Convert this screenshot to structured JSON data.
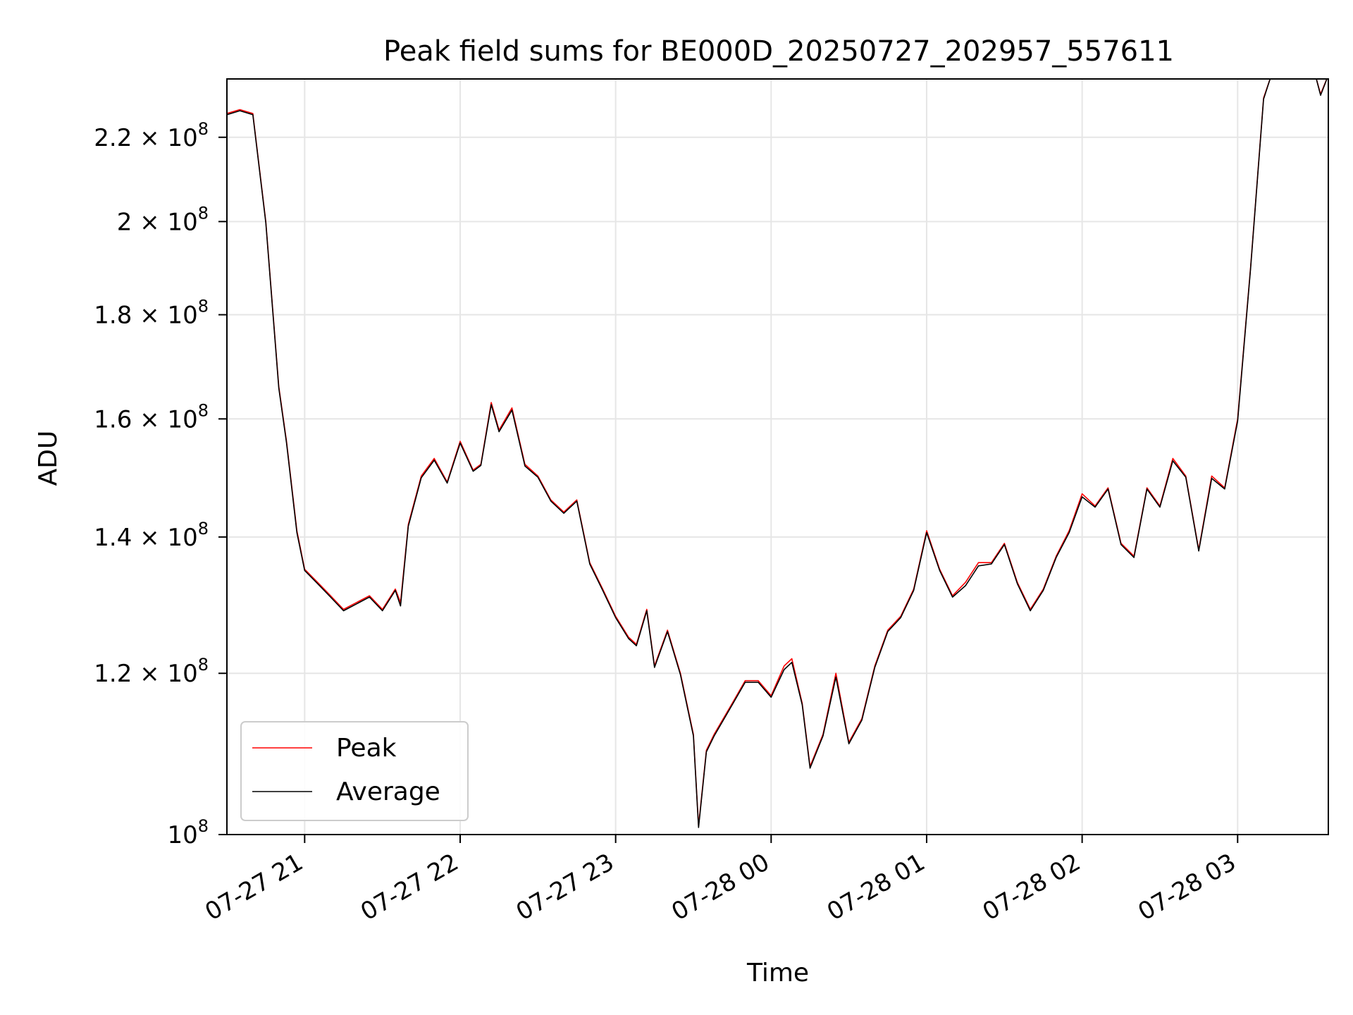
{
  "chart_data": {
    "type": "line",
    "title": "Peak field sums for BE000D_20250727_202957_557611",
    "xlabel": "Time",
    "ylabel": "ADU",
    "y_scale": "log",
    "grid": true,
    "legend_position": "lower-left",
    "xlim": [
      "2025-07-27 20:30",
      "2025-07-28 03:35"
    ],
    "ylim": [
      100000000,
      235000000
    ],
    "x_ticks": [
      {
        "value": "2025-07-27 21:00",
        "label": "07-27 21"
      },
      {
        "value": "2025-07-27 22:00",
        "label": "07-27 22"
      },
      {
        "value": "2025-07-27 23:00",
        "label": "07-27 23"
      },
      {
        "value": "2025-07-28 00:00",
        "label": "07-28 00"
      },
      {
        "value": "2025-07-28 01:00",
        "label": "07-28 01"
      },
      {
        "value": "2025-07-28 02:00",
        "label": "07-28 02"
      },
      {
        "value": "2025-07-28 03:00",
        "label": "07-28 03"
      }
    ],
    "y_ticks": [
      {
        "value": 100000000,
        "mant": "10",
        "exp": "8"
      },
      {
        "value": 120000000,
        "mant": "1.2 × 10",
        "exp": "8"
      },
      {
        "value": 140000000,
        "mant": "1.4 × 10",
        "exp": "8"
      },
      {
        "value": 160000000,
        "mant": "1.6 × 10",
        "exp": "8"
      },
      {
        "value": 180000000,
        "mant": "1.8 × 10",
        "exp": "8"
      },
      {
        "value": 200000000,
        "mant": "2 × 10",
        "exp": "8"
      },
      {
        "value": 220000000,
        "mant": "2.2 × 10",
        "exp": "8"
      }
    ],
    "series": [
      {
        "name": "Peak",
        "color": "#ff0000",
        "x": [
          "2025-07-27 20:30",
          "2025-07-27 20:35",
          "2025-07-27 20:40",
          "2025-07-27 20:45",
          "2025-07-27 20:50",
          "2025-07-27 20:53",
          "2025-07-27 20:57",
          "2025-07-27 21:00",
          "2025-07-27 21:05",
          "2025-07-27 21:10",
          "2025-07-27 21:15",
          "2025-07-27 21:20",
          "2025-07-27 21:25",
          "2025-07-27 21:30",
          "2025-07-27 21:35",
          "2025-07-27 21:37",
          "2025-07-27 21:40",
          "2025-07-27 21:45",
          "2025-07-27 21:50",
          "2025-07-27 21:55",
          "2025-07-27 22:00",
          "2025-07-27 22:05",
          "2025-07-27 22:08",
          "2025-07-27 22:12",
          "2025-07-27 22:15",
          "2025-07-27 22:20",
          "2025-07-27 22:25",
          "2025-07-27 22:30",
          "2025-07-27 22:35",
          "2025-07-27 22:40",
          "2025-07-27 22:45",
          "2025-07-27 22:50",
          "2025-07-27 22:55",
          "2025-07-27 23:00",
          "2025-07-27 23:05",
          "2025-07-27 23:08",
          "2025-07-27 23:12",
          "2025-07-27 23:15",
          "2025-07-27 23:20",
          "2025-07-27 23:25",
          "2025-07-27 23:30",
          "2025-07-27 23:32",
          "2025-07-27 23:35",
          "2025-07-27 23:38",
          "2025-07-27 23:45",
          "2025-07-27 23:50",
          "2025-07-27 23:55",
          "2025-07-28 00:00",
          "2025-07-28 00:05",
          "2025-07-28 00:08",
          "2025-07-28 00:12",
          "2025-07-28 00:15",
          "2025-07-28 00:20",
          "2025-07-28 00:25",
          "2025-07-28 00:30",
          "2025-07-28 00:35",
          "2025-07-28 00:40",
          "2025-07-28 00:45",
          "2025-07-28 00:50",
          "2025-07-28 00:55",
          "2025-07-28 01:00",
          "2025-07-28 01:05",
          "2025-07-28 01:10",
          "2025-07-28 01:15",
          "2025-07-28 01:20",
          "2025-07-28 01:25",
          "2025-07-28 01:30",
          "2025-07-28 01:35",
          "2025-07-28 01:40",
          "2025-07-28 01:45",
          "2025-07-28 01:50",
          "2025-07-28 01:55",
          "2025-07-28 02:00",
          "2025-07-28 02:05",
          "2025-07-28 02:10",
          "2025-07-28 02:15",
          "2025-07-28 02:20",
          "2025-07-28 02:25",
          "2025-07-28 02:30",
          "2025-07-28 02:35",
          "2025-07-28 02:40",
          "2025-07-28 02:45",
          "2025-07-28 02:50",
          "2025-07-28 02:55",
          "2025-07-28 03:00",
          "2025-07-28 03:05",
          "2025-07-28 03:10",
          "2025-07-28 03:13",
          "2025-07-28 03:20",
          "2025-07-28 03:25",
          "2025-07-28 03:30",
          "2025-07-28 03:32",
          "2025-07-28 03:35"
        ],
        "y": [
          226000000,
          227000000,
          226000000,
          200000000,
          166000000,
          156000000,
          141000000,
          135000000,
          133000000,
          131000000,
          129000000,
          130000000,
          131000000,
          129000000,
          132000000,
          130000000,
          142000000,
          150000000,
          153000000,
          149000000,
          156000000,
          151000000,
          152000000,
          163000000,
          158000000,
          162000000,
          152000000,
          150000000,
          146000000,
          144000000,
          146000000,
          136000000,
          132000000,
          128000000,
          125000000,
          124000000,
          129000000,
          121000000,
          126000000,
          120000000,
          112000000,
          101000000,
          110000000,
          112000000,
          116000000,
          119000000,
          119000000,
          117000000,
          121000000,
          122000000,
          116000000,
          108000000,
          112000000,
          120000000,
          111000000,
          114000000,
          121000000,
          126000000,
          128000000,
          132000000,
          141000000,
          135000000,
          131000000,
          133000000,
          136000000,
          136000000,
          139000000,
          133000000,
          129000000,
          132000000,
          137000000,
          141000000,
          147000000,
          145000000,
          148000000,
          139000000,
          137000000,
          148000000,
          145000000,
          153000000,
          150000000,
          138000000,
          150000000,
          148000000,
          160000000,
          190000000,
          230000000,
          236000000,
          236000000,
          236000000,
          236000000,
          231000000,
          236000000
        ]
      },
      {
        "name": "Average",
        "color": "#000000",
        "x": [
          "2025-07-27 20:30",
          "2025-07-27 20:35",
          "2025-07-27 20:40",
          "2025-07-27 20:45",
          "2025-07-27 20:50",
          "2025-07-27 20:53",
          "2025-07-27 20:57",
          "2025-07-27 21:00",
          "2025-07-27 21:05",
          "2025-07-27 21:10",
          "2025-07-27 21:15",
          "2025-07-27 21:20",
          "2025-07-27 21:25",
          "2025-07-27 21:30",
          "2025-07-27 21:35",
          "2025-07-27 21:37",
          "2025-07-27 21:40",
          "2025-07-27 21:45",
          "2025-07-27 21:50",
          "2025-07-27 21:55",
          "2025-07-27 22:00",
          "2025-07-27 22:05",
          "2025-07-27 22:08",
          "2025-07-27 22:12",
          "2025-07-27 22:15",
          "2025-07-27 22:20",
          "2025-07-27 22:25",
          "2025-07-27 22:30",
          "2025-07-27 22:35",
          "2025-07-27 22:40",
          "2025-07-27 22:45",
          "2025-07-27 22:50",
          "2025-07-27 22:55",
          "2025-07-27 23:00",
          "2025-07-27 23:05",
          "2025-07-27 23:08",
          "2025-07-27 23:12",
          "2025-07-27 23:15",
          "2025-07-27 23:20",
          "2025-07-27 23:25",
          "2025-07-27 23:30",
          "2025-07-27 23:32",
          "2025-07-27 23:35",
          "2025-07-27 23:38",
          "2025-07-27 23:45",
          "2025-07-27 23:50",
          "2025-07-27 23:55",
          "2025-07-28 00:00",
          "2025-07-28 00:05",
          "2025-07-28 00:08",
          "2025-07-28 00:12",
          "2025-07-28 00:15",
          "2025-07-28 00:20",
          "2025-07-28 00:25",
          "2025-07-28 00:30",
          "2025-07-28 00:35",
          "2025-07-28 00:40",
          "2025-07-28 00:45",
          "2025-07-28 00:50",
          "2025-07-28 00:55",
          "2025-07-28 01:00",
          "2025-07-28 01:05",
          "2025-07-28 01:10",
          "2025-07-28 01:15",
          "2025-07-28 01:20",
          "2025-07-28 01:25",
          "2025-07-28 01:30",
          "2025-07-28 01:35",
          "2025-07-28 01:40",
          "2025-07-28 01:45",
          "2025-07-28 01:50",
          "2025-07-28 01:55",
          "2025-07-28 02:00",
          "2025-07-28 02:05",
          "2025-07-28 02:10",
          "2025-07-28 02:15",
          "2025-07-28 02:20",
          "2025-07-28 02:25",
          "2025-07-28 02:30",
          "2025-07-28 02:35",
          "2025-07-28 02:40",
          "2025-07-28 02:45",
          "2025-07-28 02:50",
          "2025-07-28 02:55",
          "2025-07-28 03:00",
          "2025-07-28 03:05",
          "2025-07-28 03:10",
          "2025-07-28 03:13",
          "2025-07-28 03:20",
          "2025-07-28 03:25",
          "2025-07-28 03:30",
          "2025-07-28 03:32",
          "2025-07-28 03:35"
        ],
        "y": [
          225700000,
          226700000,
          225700000,
          199700000,
          165700000,
          155700000,
          140700000,
          134800000,
          132800000,
          130800000,
          128800000,
          129800000,
          130800000,
          128800000,
          131800000,
          129500000,
          141700000,
          149700000,
          152700000,
          148800000,
          155700000,
          150800000,
          151800000,
          162600000,
          157700000,
          161600000,
          151700000,
          149800000,
          145800000,
          143800000,
          145800000,
          135800000,
          131800000,
          127800000,
          124800000,
          123800000,
          128800000,
          120800000,
          125800000,
          119800000,
          111800000,
          100800000,
          109800000,
          111800000,
          115800000,
          118800000,
          118800000,
          116800000,
          120500000,
          121500000,
          115800000,
          107800000,
          111800000,
          119500000,
          110800000,
          113800000,
          120800000,
          125800000,
          127800000,
          131800000,
          140700000,
          134800000,
          130800000,
          132500000,
          135500000,
          135800000,
          138800000,
          132800000,
          128800000,
          131800000,
          136800000,
          140700000,
          146500000,
          144800000,
          147800000,
          138800000,
          136800000,
          147800000,
          144800000,
          152600000,
          149800000,
          137800000,
          149600000,
          147800000,
          159600000,
          189700000,
          229700000,
          236000000,
          236000000,
          236000000,
          236000000,
          230700000,
          236000000
        ]
      }
    ]
  }
}
